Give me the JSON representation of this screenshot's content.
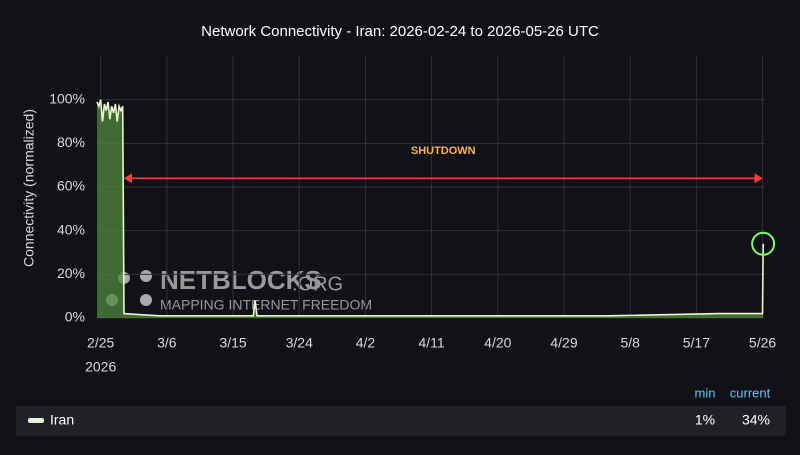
{
  "chart_data": {
    "type": "line",
    "title": "Network Connectivity - Iran: 2026-02-24 to 2026-05-26 UTC",
    "ylabel": "Connectivity (normalized)",
    "x": [
      "2026-02-24T12:00",
      "2026-02-24T18:00",
      "2026-02-25T00:00",
      "2026-02-25T06:00",
      "2026-02-25T12:00",
      "2026-02-25T18:00",
      "2026-02-26T00:00",
      "2026-02-26T06:00",
      "2026-02-26T12:00",
      "2026-02-26T18:00",
      "2026-02-27T00:00",
      "2026-02-27T06:00",
      "2026-02-27T12:00",
      "2026-02-27T18:00",
      "2026-02-28T00:00",
      "2026-02-28T04:00",
      "2026-03-05T00:00",
      "2026-03-12T00:00",
      "2026-03-17T18:00",
      "2026-03-18T00:00",
      "2026-03-18T06:00",
      "2026-03-26T00:00",
      "2026-04-06T00:00",
      "2026-04-20T00:00",
      "2026-05-05T00:00",
      "2026-05-20T00:00",
      "2026-05-26T00:00",
      "2026-05-26T02:00"
    ],
    "series": [
      {
        "name": "Iran",
        "color": "#e8f5d0",
        "fill": "#4f8a3c",
        "values": [
          99,
          97,
          100,
          90,
          98,
          95,
          99,
          91,
          97,
          94,
          98,
          90,
          97,
          95,
          97,
          2,
          1,
          1,
          1,
          8,
          1,
          1,
          1,
          1,
          1,
          2,
          2,
          34
        ]
      }
    ],
    "xlim": [
      "2026-02-24T12:00",
      "2026-05-26T08:00"
    ],
    "xticks": [
      {
        "value": "2026-02-25T00:00",
        "label": "2/25"
      },
      {
        "value": "2026-03-06T00:00",
        "label": "3/6"
      },
      {
        "value": "2026-03-15T00:00",
        "label": "3/15"
      },
      {
        "value": "2026-03-24T00:00",
        "label": "3/24"
      },
      {
        "value": "2026-04-02T00:00",
        "label": "4/2"
      },
      {
        "value": "2026-04-11T00:00",
        "label": "4/11"
      },
      {
        "value": "2026-04-20T00:00",
        "label": "4/20"
      },
      {
        "value": "2026-04-29T00:00",
        "label": "4/29"
      },
      {
        "value": "2026-05-08T00:00",
        "label": "5/8"
      },
      {
        "value": "2026-05-17T00:00",
        "label": "5/17"
      },
      {
        "value": "2026-05-26T00:00",
        "label": "5/26"
      }
    ],
    "year_label": "2026",
    "ylim": [
      0,
      120
    ],
    "yticks": [
      {
        "value": 0,
        "label": "0%"
      },
      {
        "value": 20,
        "label": "20%"
      },
      {
        "value": 40,
        "label": "40%"
      },
      {
        "value": 60,
        "label": "60%"
      },
      {
        "value": 80,
        "label": "80%"
      },
      {
        "value": 100,
        "label": "100%"
      }
    ],
    "grid": true,
    "annotation": {
      "text": "SHUTDOWN",
      "start": "2026-02-28T04:00",
      "end": "2026-05-26T00:00",
      "y": 64,
      "color": "#ff3b3b",
      "text_color": "#ffb340"
    },
    "highlight_point": 27,
    "watermark": {
      "brand": "NETBLOCKS",
      "suffix": ".ORG",
      "tagline": "MAPPING INTERNET FREEDOM"
    },
    "legend": {
      "headers": [
        "min",
        "current"
      ],
      "values": [
        1,
        34
      ],
      "value_labels": [
        "1%",
        "34%"
      ]
    }
  }
}
